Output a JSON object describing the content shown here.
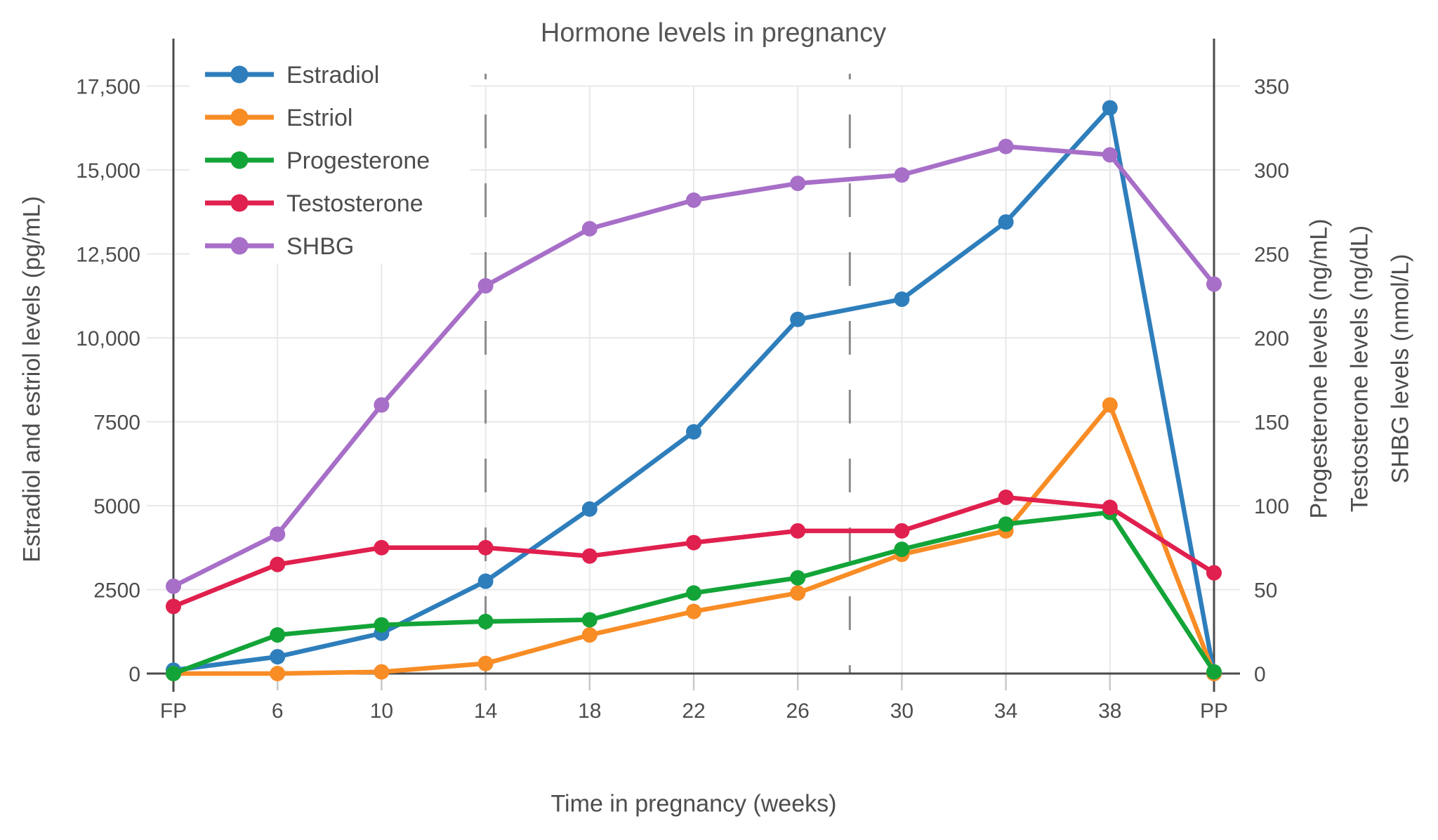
{
  "title": "Hormone levels in pregnancy",
  "x_axis": {
    "title": "Time in pregnancy (weeks)",
    "tick_labels": [
      "FP",
      "6",
      "10",
      "14",
      "18",
      "22",
      "26",
      "30",
      "34",
      "38",
      "PP"
    ]
  },
  "y_left": {
    "title": "Estradiol and estriol levels (pg/mL)",
    "tick_labels": [
      "0",
      "2500",
      "5000",
      "7500",
      "10,000",
      "12,500",
      "15,000",
      "17,500"
    ],
    "tick_values": [
      0,
      2500,
      5000,
      7500,
      10000,
      12500,
      15000,
      17500
    ]
  },
  "y_right": {
    "titles": [
      "Progesterone levels (ng/mL)",
      "Testosterone levels (ng/dL)",
      "SHBG levels (nmol/L)"
    ],
    "tick_labels": [
      "0",
      "50",
      "100",
      "150",
      "200",
      "250",
      "300",
      "350"
    ],
    "tick_values": [
      0,
      50,
      100,
      150,
      200,
      250,
      300,
      350
    ]
  },
  "legend": {
    "items": [
      "Estradiol",
      "Estriol",
      "Progesterone",
      "Testosterone",
      "SHBG"
    ]
  },
  "colors": {
    "estradiol": "#2E7EBC",
    "estriol": "#F88C25",
    "progesterone": "#13A438",
    "testosterone": "#E0204E",
    "shbg": "#A76FC8",
    "axis_line": "#4a4a4a",
    "gridline": "#e8e8e8",
    "minor_tick": "#c9c9c9",
    "dashed_line": "#8a8a8a",
    "text": "#4d4d4d"
  },
  "chart_data": {
    "type": "line",
    "categories": [
      "FP",
      "6",
      "10",
      "14",
      "18",
      "22",
      "26",
      "30",
      "34",
      "38",
      "PP"
    ],
    "series": [
      {
        "name": "Estradiol",
        "axis": "left",
        "unit": "pg/mL",
        "color": "#2E7EBC",
        "values": [
          100,
          500,
          1200,
          2750,
          4900,
          7200,
          10550,
          11150,
          13450,
          16850,
          0
        ]
      },
      {
        "name": "Estriol",
        "axis": "left",
        "unit": "pg/mL",
        "color": "#F88C25",
        "values": [
          0,
          0,
          50,
          300,
          1150,
          1850,
          2400,
          3550,
          4250,
          8000,
          0
        ]
      },
      {
        "name": "Progesterone",
        "axis": "right",
        "unit": "ng/mL",
        "color": "#13A438",
        "values": [
          0,
          23,
          29,
          31,
          32,
          48,
          57,
          74,
          89,
          96,
          1
        ]
      },
      {
        "name": "Testosterone",
        "axis": "right",
        "unit": "ng/dL",
        "color": "#E0204E",
        "values": [
          40,
          65,
          75,
          75,
          70,
          78,
          85,
          85,
          105,
          99,
          60
        ]
      },
      {
        "name": "SHBG",
        "axis": "right",
        "unit": "nmol/L",
        "color": "#A76FC8",
        "values": [
          52,
          83,
          160,
          231,
          265,
          282,
          292,
          297,
          314,
          309,
          232
        ]
      }
    ],
    "title": "Hormone levels in pregnancy",
    "xlabel": "Time in pregnancy (weeks)",
    "ylabel_left": "Estradiol and estriol levels (pg/mL)",
    "ylabels_right": [
      "Progesterone levels (ng/mL)",
      "Testosterone levels (ng/dL)",
      "SHBG levels (nmol/L)"
    ],
    "left_axis_ticks": [
      0,
      2500,
      5000,
      7500,
      10000,
      12500,
      15000,
      17500
    ],
    "right_axis_ticks": [
      0,
      50,
      100,
      150,
      200,
      250,
      300,
      350
    ],
    "right_to_left_scale": 50,
    "grid": true,
    "legend_position": "top-left",
    "reference_lines": {
      "solid_at": [
        "FP",
        "PP"
      ],
      "dashed_between_weeks": [
        "14",
        "28"
      ]
    }
  }
}
